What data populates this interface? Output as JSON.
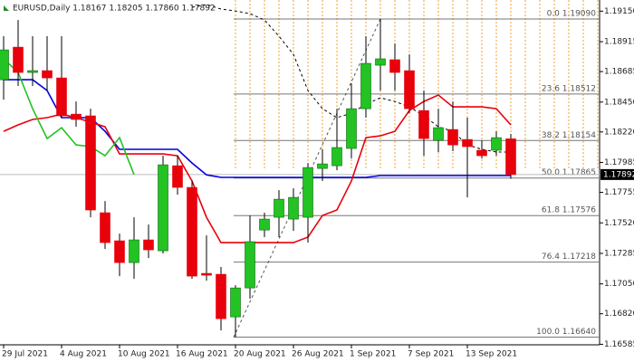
{
  "chart_data": {
    "type": "candlestick",
    "title": "EURUSD,Daily  1.18167 1.18205 1.17860 1.17892",
    "categories": [
      "29 Jul 2021",
      null,
      null,
      null,
      "4 Aug 2021",
      null,
      null,
      null,
      "10 Aug 2021",
      null,
      null,
      null,
      "16 Aug 2021",
      null,
      null,
      null,
      "20 Aug 2021",
      null,
      null,
      null,
      "26 Aug 2021",
      null,
      null,
      null,
      "1 Sep 2021",
      null,
      null,
      null,
      "7 Sep 2021",
      null,
      null,
      null,
      "13 Sep 2021",
      null,
      null,
      null
    ],
    "open": [
      1.18622,
      1.18873,
      1.18678,
      1.18692,
      1.18636,
      1.18357,
      1.18344,
      1.17598,
      1.17382,
      1.17214,
      1.17389,
      1.17305,
      1.1796,
      1.17793,
      1.17131,
      1.17124,
      1.16796,
      1.17019,
      1.17465,
      1.17563,
      1.17549,
      1.17563,
      1.17939,
      1.1796,
      1.18093,
      1.18399,
      1.18734,
      1.18776,
      1.18692,
      1.18385,
      1.18155,
      1.18239,
      1.18162,
      1.18079,
      1.18079,
      1.18167
    ],
    "high": [
      1.18957,
      1.19082,
      1.18957,
      1.18957,
      1.18957,
      1.18455,
      1.18399,
      1.17688,
      1.17437,
      1.17563,
      1.17507,
      1.18037,
      1.18037,
      1.17842,
      1.17423,
      1.1718,
      1.1704,
      1.17577,
      1.17598,
      1.17772,
      1.17786,
      1.17981,
      1.18086,
      1.18399,
      1.18594,
      1.18957,
      1.1909,
      1.18901,
      1.18817,
      1.18539,
      1.18399,
      1.18455,
      1.1833,
      1.18155,
      1.18225,
      1.18205
    ],
    "low": [
      1.18469,
      1.18574,
      1.18574,
      1.18539,
      1.1833,
      1.1826,
      1.17563,
      1.17319,
      1.1711,
      1.17089,
      1.17249,
      1.17284,
      1.17737,
      1.17089,
      1.17075,
      1.16692,
      1.1664,
      1.16936,
      1.1741,
      1.1741,
      1.17458,
      1.17368,
      1.17842,
      1.17925,
      1.18016,
      1.1833,
      1.18539,
      1.18539,
      1.18364,
      1.18037,
      1.18065,
      1.18072,
      1.17716,
      1.18016,
      1.18037,
      1.1786
    ],
    "close": [
      1.18852,
      1.18678,
      1.18692,
      1.18636,
      1.18344,
      1.18316,
      1.17619,
      1.17368,
      1.17214,
      1.17389,
      1.17312,
      1.17967,
      1.17793,
      1.1711,
      1.17117,
      1.16782,
      1.17019,
      1.17375,
      1.17549,
      1.17702,
      1.17716,
      1.17946,
      1.17974,
      1.181,
      1.18399,
      1.18748,
      1.18783,
      1.18678,
      1.18399,
      1.18169,
      1.18253,
      1.1812,
      1.18107,
      1.18037,
      1.18176,
      1.17892
    ],
    "up_color": "#22c322",
    "down_color": "#e8000b",
    "lines": [
      {
        "color": "#0000e0",
        "dashed": false,
        "values": [
          1.18622,
          1.18622,
          1.18622,
          1.18539,
          1.1833,
          1.1833,
          1.1833,
          1.18225,
          1.18086,
          1.18086,
          1.18086,
          1.18086,
          1.18086,
          1.17981,
          1.1789,
          1.1787,
          1.1787,
          1.1787,
          1.1787,
          1.1787,
          1.1787,
          1.1787,
          1.1787,
          1.1787,
          1.1787,
          1.1787,
          1.17884,
          1.17884,
          1.17884,
          1.17884,
          1.17884,
          1.17884,
          1.17884,
          1.17884,
          1.17884,
          1.17884
        ]
      },
      {
        "color": "#e8000b",
        "dashed": false,
        "values": [
          1.18225,
          1.18274,
          1.18316,
          1.1833,
          1.18357,
          1.1833,
          1.18295,
          1.1826,
          1.18051,
          1.18051,
          1.18051,
          1.18051,
          1.18037,
          1.17842,
          1.17563,
          1.17368,
          1.17368,
          1.17368,
          1.17368,
          1.17368,
          1.17368,
          1.1741,
          1.17577,
          1.17619,
          1.17842,
          1.18176,
          1.1819,
          1.18225,
          1.18385,
          1.18455,
          1.18504,
          1.18413,
          1.18413,
          1.18413,
          1.18399,
          1.18274
        ]
      },
      {
        "color": "#22c322",
        "dashed": false,
        "values": [
          1.18783,
          1.18678,
          1.18399,
          1.18169,
          1.18253,
          1.1812,
          1.18107,
          1.18037,
          1.18176,
          1.17892,
          null,
          null,
          null,
          null,
          null,
          null,
          null,
          null,
          null,
          null,
          null,
          null,
          null,
          null,
          null,
          null,
          null,
          null,
          null,
          null,
          null,
          null,
          null,
          null,
          null,
          null
        ]
      },
      {
        "color": "#000000",
        "dashed": true,
        "values": [
          null,
          null,
          null,
          null,
          null,
          null,
          null,
          null,
          null,
          null,
          null,
          null,
          null,
          1.1918,
          1.19201,
          1.19166,
          1.19152,
          1.19131,
          1.19082,
          1.18957,
          1.18817,
          1.18539,
          1.18399,
          1.1833,
          1.18364,
          1.18434,
          1.18483,
          1.18455,
          1.18413,
          1.18344,
          1.1826,
          1.18225,
          1.1812,
          1.18086,
          1.18065,
          1.18065
        ]
      }
    ],
    "fib_levels": [
      {
        "value": 1.1909,
        "label": "0.0 1.19090"
      },
      {
        "value": 1.18512,
        "label": "23.6 1.18512"
      },
      {
        "value": 1.18154,
        "label": "38.2 1.18154"
      },
      {
        "value": 1.17865,
        "label": "50.0 1.17865"
      },
      {
        "value": 1.17576,
        "label": "61.8 1.17576"
      },
      {
        "value": 1.17218,
        "label": "76.4 1.17218"
      },
      {
        "value": 1.1664,
        "label": "100.0 1.16640"
      }
    ],
    "ylim": [
      1.16581,
      1.19236
    ],
    "yticks": [
      {
        "value": 1.1915,
        "label": "1.19150"
      },
      1.18915,
      1.18685,
      {
        "value": 1.1845,
        "label": "1.18450"
      },
      {
        "value": 1.1822,
        "label": "1.18220"
      },
      1.17985,
      1.17755,
      {
        "value": 1.1752,
        "label": "1.17520"
      },
      1.17285,
      {
        "value": 1.1705,
        "label": "1.17050"
      },
      {
        "value": 1.1682,
        "label": "1.16820"
      },
      1.16585
    ]
  }
}
